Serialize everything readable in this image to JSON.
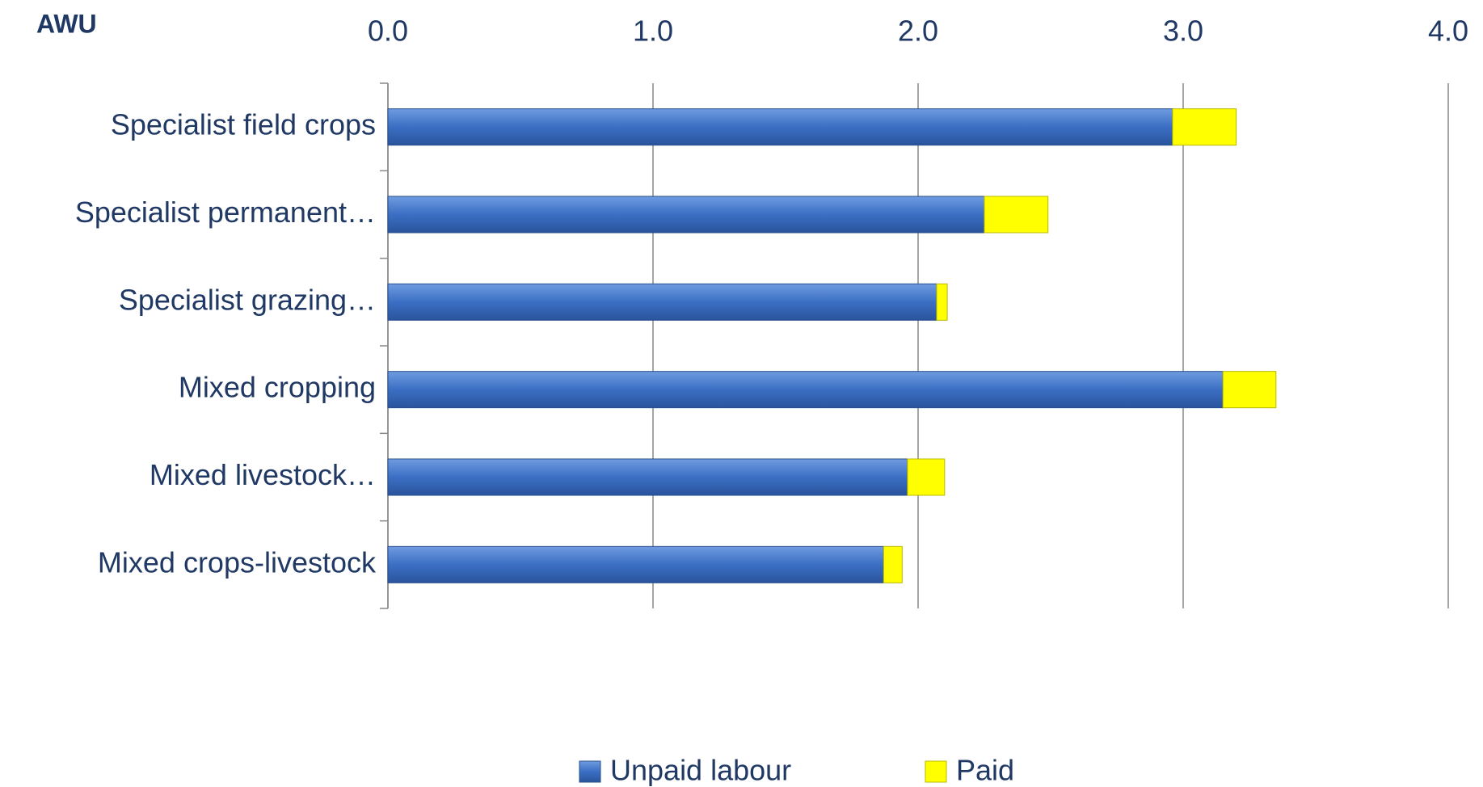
{
  "chart_data": {
    "type": "bar",
    "orientation": "horizontal",
    "stacked": true,
    "axis_label": "AWU",
    "categories": [
      "Specialist field crops",
      "Specialist permanent…",
      "Specialist grazing…",
      "Mixed cropping",
      "Mixed livestock…",
      "Mixed crops-livestock"
    ],
    "series": [
      {
        "name": "Unpaid labour",
        "color": "#3b6fc4",
        "values": [
          2.96,
          2.25,
          2.07,
          3.15,
          1.96,
          1.87
        ]
      },
      {
        "name": "Paid",
        "color": "#ffff00",
        "values": [
          0.24,
          0.24,
          0.04,
          0.2,
          0.14,
          0.07
        ]
      }
    ],
    "xlim": [
      0,
      4
    ],
    "xticks": [
      {
        "value": 0,
        "label": "0.0"
      },
      {
        "value": 1,
        "label": "1.0"
      },
      {
        "value": 2,
        "label": "2.0"
      },
      {
        "value": 3,
        "label": "3.0"
      },
      {
        "value": 4,
        "label": "4.0"
      }
    ],
    "grid": true,
    "legend": "bottom"
  }
}
